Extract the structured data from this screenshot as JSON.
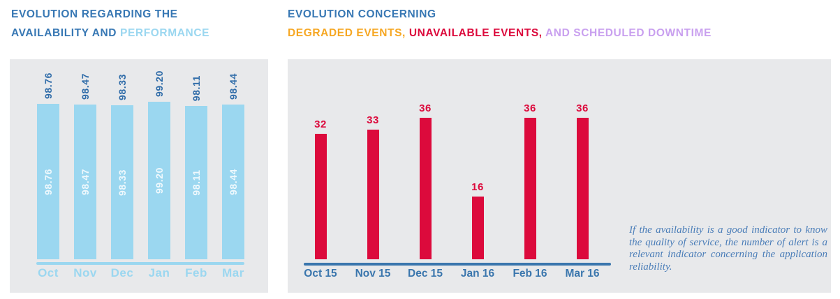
{
  "colors": {
    "title_blue": "#3878b4",
    "bar_light_blue": "#9bd7f0",
    "value_dark_blue": "#2e6ba8",
    "bar_red": "#dc0a3c",
    "axis_blue": "#3a76ad",
    "annotation_blue": "#4a7db8",
    "panel_background": "#e8e9eb",
    "orange": "#f6a723",
    "purple": "#c9a0ef"
  },
  "left_section": {
    "title_line1": "EVOLUTION REGARDING THE",
    "title_line2_dark": "AVAILABILITY AND",
    "title_line2_light": "PERFORMANCE"
  },
  "right_section": {
    "title_line1": "EVOLUTION CONCERNING",
    "title_segments": [
      {
        "text": "DEGRADED EVENTS,",
        "color": "#f6a723"
      },
      {
        "text": "UNAVAILABLE EVENTS,",
        "color": "#dc0a3c"
      },
      {
        "text": "AND SCHEDULED DOWNTIME",
        "color": "#c9a0ef"
      }
    ],
    "annotation": {
      "text": "If the availability is a good indicator to know the quality of service, the number of alert is a relevant indicator concerning the application reliability."
    }
  },
  "chart_data": [
    {
      "type": "bar",
      "title": "EVOLUTION REGARDING THE AVAILABILITY AND PERFORMANCE",
      "categories": [
        "Oct",
        "Nov",
        "Dec",
        "Jan",
        "Feb",
        "Mar"
      ],
      "values": [
        98.76,
        98.47,
        98.33,
        99.2,
        98.11,
        98.44
      ],
      "value_labels": [
        "98.76",
        "98.47",
        "98.33",
        "99.20",
        "98.11",
        "98.44"
      ],
      "value_labels_rotated": true,
      "inside_labels": [
        "98.76",
        "98.47",
        "98.33",
        "99.20",
        "98.11",
        "98.44"
      ],
      "bar_color": "#9bd7f0",
      "value_label_color": "#2e6ba8",
      "inside_label_color": "#ffffff",
      "xlabel": "",
      "ylabel": "",
      "ylim": [
        60,
        100
      ],
      "grid": false,
      "legend": "none"
    },
    {
      "type": "bar",
      "title": "EVOLUTION CONCERNING DEGRADED EVENTS, UNAVAILABLE EVENTS, AND SCHEDULED DOWNTIME",
      "categories": [
        "Oct 15",
        "Nov 15",
        "Dec 15",
        "Jan 16",
        "Feb 16",
        "Mar 16"
      ],
      "values": [
        32,
        33,
        36,
        16,
        36,
        36
      ],
      "value_labels": [
        "32",
        "33",
        "36",
        "16",
        "36",
        "36"
      ],
      "bar_color": "#dc0a3c",
      "value_label_color": "#dc0a3c",
      "axis_color": "#3a76ad",
      "xlabel": "",
      "ylabel": "",
      "ylim": [
        0,
        36
      ],
      "grid": false,
      "legend": "none"
    }
  ]
}
